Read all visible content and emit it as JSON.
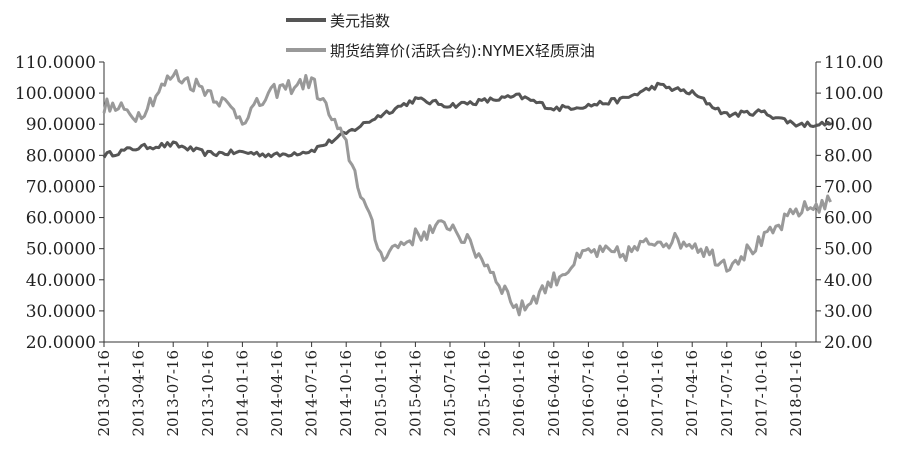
{
  "chart_data": {
    "type": "line",
    "title": "",
    "xlabel": "",
    "ylabel": "",
    "legend_position": "top",
    "grid": false,
    "x": [
      "2013-01-16",
      "2013-04-16",
      "2013-07-16",
      "2013-10-16",
      "2014-01-16",
      "2014-04-16",
      "2014-07-16",
      "2014-10-16",
      "2015-01-16",
      "2015-04-16",
      "2015-07-16",
      "2015-10-16",
      "2016-01-16",
      "2016-04-16",
      "2016-07-16",
      "2016-10-16",
      "2017-01-16",
      "2017-04-16",
      "2017-07-16",
      "2017-10-16",
      "2018-01-16",
      "2018-04-01"
    ],
    "x_tick_labels": [
      "2013-01-16",
      "2013-04-16",
      "2013-07-16",
      "2013-10-16",
      "2014-01-16",
      "2014-04-16",
      "2014-07-16",
      "2014-10-16",
      "2015-01-16",
      "2015-04-16",
      "2015-07-16",
      "2015-10-16",
      "2016-01-16",
      "2016-04-16",
      "2016-07-16",
      "2016-10-16",
      "2017-01-16",
      "2017-04-16",
      "2017-07-16",
      "2017-10-16",
      "2018-01-16"
    ],
    "left_axis": {
      "ylim": [
        20,
        110
      ],
      "ticks": [
        20,
        30,
        40,
        50,
        60,
        70,
        80,
        90,
        100,
        110
      ],
      "tick_labels": [
        "20.0000",
        "30.0000",
        "40.0000",
        "50.0000",
        "60.0000",
        "70.0000",
        "80.0000",
        "90.0000",
        "100.0000",
        "110.0000"
      ]
    },
    "right_axis": {
      "ylim": [
        20,
        110
      ],
      "ticks": [
        20,
        30,
        40,
        50,
        60,
        70,
        80,
        90,
        100,
        110
      ],
      "tick_labels": [
        "20.00",
        "30.00",
        "40.00",
        "50.00",
        "60.00",
        "70.00",
        "80.00",
        "90.00",
        "100.00",
        "110.00"
      ]
    },
    "series": [
      {
        "name": "美元指数",
        "color": "#555555",
        "axis": "left",
        "values": [
          80,
          82.5,
          83.5,
          80.5,
          81,
          80,
          81.5,
          87,
          93,
          98,
          96,
          97.5,
          99,
          95,
          96,
          98,
          102.5,
          100,
          93,
          94,
          90,
          90
        ]
      },
      {
        "name": "期货结算价(活跃合约):NYMEX轻质原油",
        "color": "#999999",
        "axis": "right",
        "values": [
          96,
          93,
          106,
          101,
          92,
          101,
          104,
          83,
          48,
          54,
          58,
          46,
          30,
          40,
          49,
          48,
          53,
          52,
          45,
          52,
          62,
          65
        ]
      }
    ]
  }
}
